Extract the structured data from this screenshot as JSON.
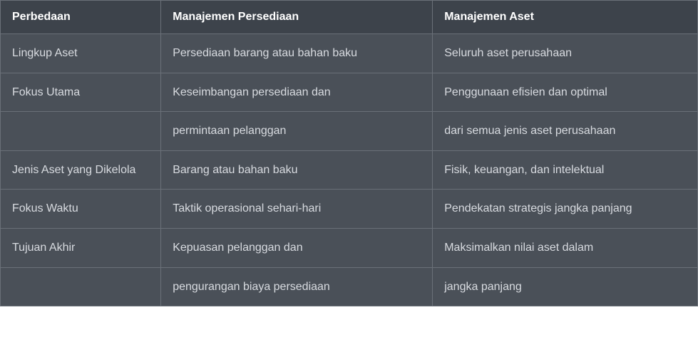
{
  "table": {
    "type": "table",
    "background_color": "#4a5058",
    "header_background_color": "#3d434b",
    "border_color": "#6a7078",
    "header_text_color": "#ffffff",
    "cell_text_color": "#d8dbe0",
    "header_fontsize": 16,
    "cell_fontsize": 16,
    "header_fontweight": 700,
    "columns": [
      {
        "label": "Perbedaan",
        "width_pct": 23
      },
      {
        "label": "Manajemen Persediaan",
        "width_pct": 39
      },
      {
        "label": "Manajemen Aset",
        "width_pct": 38
      }
    ],
    "rows": [
      [
        "Lingkup Aset",
        "Persediaan barang atau bahan baku",
        "Seluruh aset perusahaan"
      ],
      [
        "Fokus Utama",
        "Keseimbangan persediaan dan",
        "Penggunaan efisien dan optimal"
      ],
      [
        "",
        "permintaan pelanggan",
        "dari semua jenis aset perusahaan"
      ],
      [
        "Jenis Aset yang Dikelola",
        "Barang atau bahan baku",
        "Fisik, keuangan, dan intelektual"
      ],
      [
        "Fokus Waktu",
        "Taktik operasional sehari-hari",
        "Pendekatan strategis jangka panjang"
      ],
      [
        "Tujuan Akhir",
        "Kepuasan pelanggan dan",
        "Maksimalkan nilai aset dalam"
      ],
      [
        "",
        "pengurangan biaya persediaan",
        "jangka panjang"
      ]
    ]
  }
}
